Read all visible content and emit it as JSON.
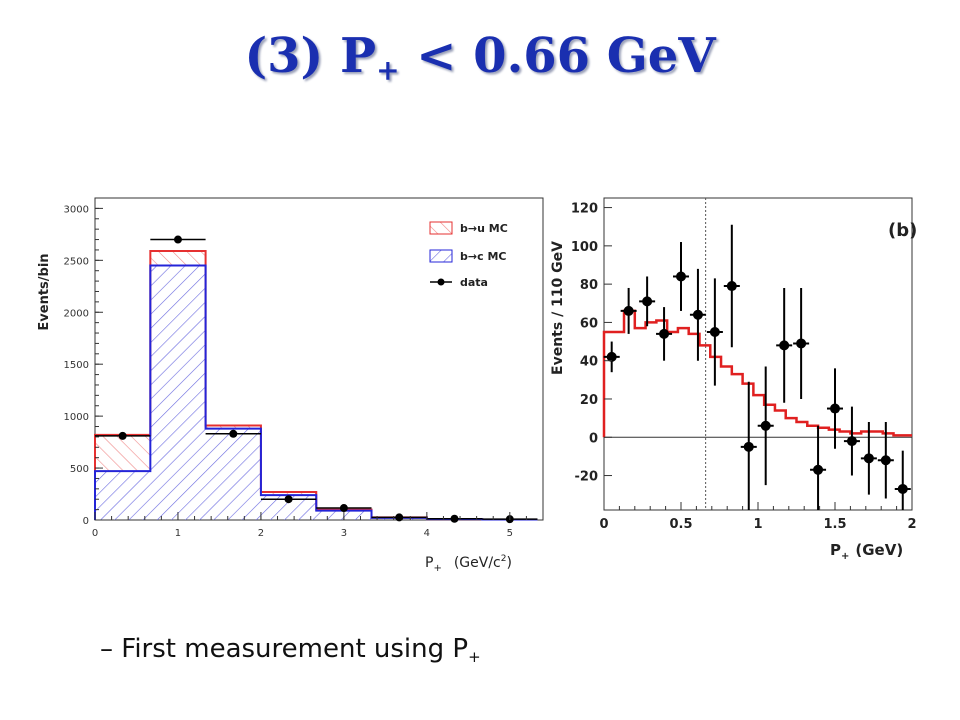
{
  "slide": {
    "title_main": "(3) P",
    "title_sub": "+",
    "title_rest": " < 0.66 GeV",
    "bullet_dash": "–",
    "bullet_text": "First measurement using P",
    "bullet_sub": "+"
  },
  "colors": {
    "title": "#1a2fb0",
    "bu_mc": "#e63030",
    "bc_mc": "#2424d8",
    "data": "#000000"
  },
  "chart_data": [
    {
      "type": "bar",
      "stacked": true,
      "x_edges": [
        0,
        0.667,
        1.333,
        2.0,
        2.667,
        3.333,
        4.0,
        4.667,
        5.333
      ],
      "series": [
        {
          "name": "b→c MC",
          "values": [
            470,
            2450,
            880,
            240,
            90,
            20,
            8,
            5
          ]
        },
        {
          "name": "b→u MC",
          "values": [
            350,
            140,
            30,
            30,
            10,
            5,
            0,
            0
          ]
        }
      ],
      "data": {
        "name": "data",
        "x": [
          0.333,
          1.0,
          1.667,
          2.333,
          3.0,
          3.667,
          4.333,
          5.0
        ],
        "y": [
          810,
          2700,
          830,
          200,
          115,
          25,
          12,
          8
        ]
      },
      "legend": [
        "b→u MC",
        "b→c MC",
        "data"
      ],
      "legend_position": "top-right",
      "xlabel": "P",
      "xlabel_sub": "+",
      "xlabel_unit": "(GeV/c",
      "xlabel_unit_sup": "2",
      "xlabel_unit_end": ")",
      "ylabel": "Events/bin",
      "xlim": [
        0,
        5.4
      ],
      "ylim": [
        0,
        3100
      ],
      "xticks": [
        "0",
        "1",
        "2",
        "3",
        "4",
        "5"
      ],
      "yticks": [
        "0",
        "500",
        "1000",
        "1500",
        "2000",
        "2500",
        "3000"
      ]
    },
    {
      "type": "line",
      "label": "(b)",
      "xlabel": "P",
      "xlabel_sub": "+",
      "xlabel_unit": "(GeV)",
      "ylabel": "Events / 110 GeV",
      "xlim": [
        0,
        2
      ],
      "ylim": [
        -38,
        125
      ],
      "xticks": [
        "0",
        "0.5",
        "1",
        "1.5",
        "2"
      ],
      "yticks": [
        "-20",
        "0",
        "20",
        "40",
        "60",
        "80",
        "100",
        "120"
      ],
      "cut_line_x": 0.66,
      "mc_step": {
        "edges": [
          0,
          0.13,
          0.2,
          0.27,
          0.34,
          0.41,
          0.48,
          0.55,
          0.62,
          0.69,
          0.76,
          0.83,
          0.9,
          0.97,
          1.04,
          1.11,
          1.18,
          1.25,
          1.32,
          1.39,
          1.46,
          1.53,
          1.6,
          1.67,
          1.74,
          1.81,
          1.88,
          2.0
        ],
        "values": [
          55,
          66,
          57,
          60,
          61,
          55,
          57,
          54,
          48,
          42,
          37,
          33,
          28,
          22,
          17,
          14,
          10,
          8,
          6,
          5,
          4,
          3,
          2,
          3,
          3,
          2,
          1
        ]
      },
      "points": {
        "x": [
          0.05,
          0.16,
          0.28,
          0.39,
          0.5,
          0.61,
          0.72,
          0.83,
          0.94,
          1.05,
          1.17,
          1.28,
          1.39,
          1.5,
          1.61,
          1.72,
          1.83,
          1.94
        ],
        "y": [
          42,
          66,
          71,
          54,
          84,
          64,
          55,
          79,
          -5,
          6,
          48,
          49,
          -17,
          15,
          -2,
          -11,
          -12,
          -27
        ],
        "err": [
          8,
          12,
          13,
          14,
          18,
          24,
          28,
          32,
          34,
          31,
          30,
          29,
          23,
          21,
          18,
          19,
          20,
          20
        ]
      }
    }
  ]
}
